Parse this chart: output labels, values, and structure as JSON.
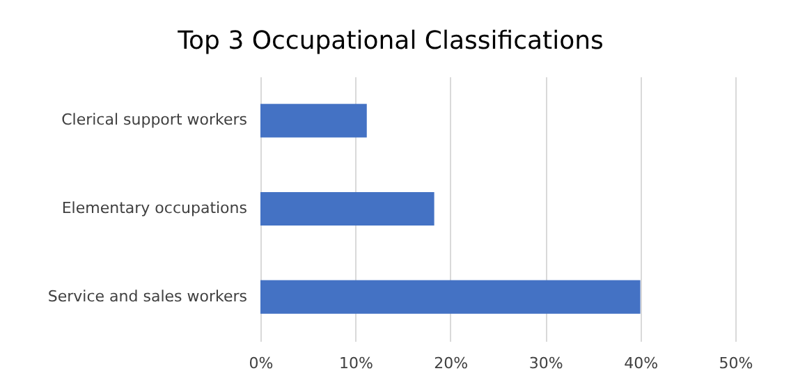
{
  "chart_data": {
    "type": "bar",
    "orientation": "horizontal",
    "title": "Top 3 Occupational Classifications",
    "categories": [
      "Clerical support workers",
      "Elementary occupations",
      "Service and sales workers"
    ],
    "values": [
      11.2,
      18.3,
      40.0
    ],
    "color": "#4472c4",
    "xlim": [
      0,
      50
    ],
    "xticks": [
      {
        "value": 0,
        "label": "0%"
      },
      {
        "value": 10,
        "label": "10%"
      },
      {
        "value": 20,
        "label": "20%"
      },
      {
        "value": 30,
        "label": "30%"
      },
      {
        "value": 40,
        "label": "40%"
      },
      {
        "value": 50,
        "label": "50%"
      }
    ],
    "grid": "x"
  }
}
